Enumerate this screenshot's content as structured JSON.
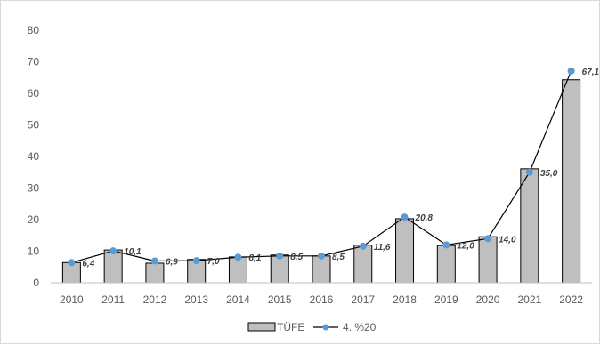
{
  "chart_data": {
    "type": "bar",
    "categories": [
      "2010",
      "2011",
      "2012",
      "2013",
      "2014",
      "2015",
      "2016",
      "2017",
      "2018",
      "2019",
      "2020",
      "2021",
      "2022"
    ],
    "series": [
      {
        "name": "TÜFE",
        "type": "bar",
        "values": [
          6.4,
          10.4,
          6.2,
          7.4,
          8.2,
          8.8,
          8.5,
          11.9,
          20.3,
          11.8,
          14.6,
          36.1,
          64.3
        ],
        "color": "#bfbfbf"
      },
      {
        "name": "4. %20",
        "type": "line",
        "values": [
          6.4,
          10.1,
          6.9,
          7.0,
          8.1,
          8.5,
          8.5,
          11.6,
          20.8,
          12.0,
          14.0,
          35.0,
          67.1
        ],
        "labels": [
          "6,4",
          "10,1",
          "6,9",
          "7,0",
          "8,1",
          "8,5",
          "8,5",
          "11,6",
          "20,8",
          "12,0",
          "14,0",
          "35,0",
          "67,1"
        ],
        "line_color": "#000000",
        "marker_color": "#5b9bd5"
      }
    ],
    "ylim": [
      0,
      80
    ],
    "yticks": [
      0,
      10,
      20,
      30,
      40,
      50,
      60,
      70,
      80
    ],
    "grid": false,
    "legend": "bottom"
  }
}
